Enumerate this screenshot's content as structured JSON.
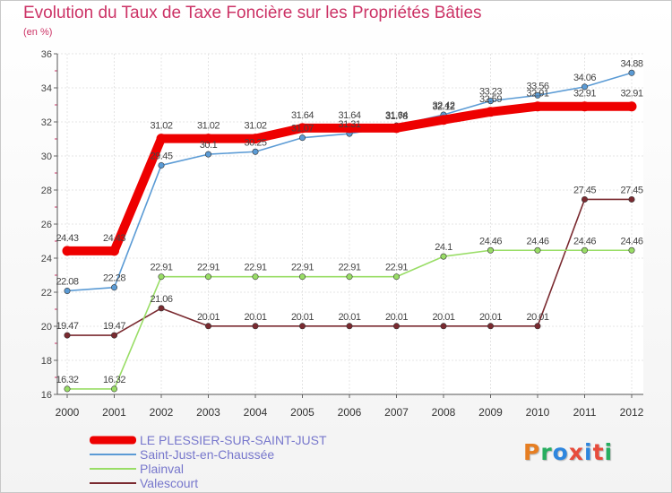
{
  "title": "Evolution du Taux de Taxe Foncière sur les Propriétés Bâties",
  "subtitle": "(en %)",
  "logo": {
    "text": "Proxiti",
    "letter_colors": [
      "#e67e22",
      "#27ae60",
      "#2e86de",
      "#e74c3c",
      "#2e86de",
      "#e74c3c",
      "#27ae60"
    ]
  },
  "chart_data": {
    "type": "line",
    "x": [
      "2000",
      "2001",
      "2002",
      "2003",
      "2004",
      "2005",
      "2006",
      "2007",
      "2008",
      "2009",
      "2010",
      "2011",
      "2012"
    ],
    "ylim": [
      16,
      36
    ],
    "yticks": [
      "16",
      "18",
      "20",
      "22",
      "24",
      "26",
      "28",
      "30",
      "32",
      "34",
      "36"
    ],
    "grid": true,
    "series": [
      {
        "name": "LE PLESSIER-SUR-SAINT-JUST",
        "color": "#ee0000",
        "values": [
          24.43,
          24.43,
          31.02,
          31.02,
          31.02,
          31.64,
          31.64,
          31.64,
          32.12,
          32.59,
          32.91,
          32.91,
          32.91
        ],
        "labels": [
          "24.43",
          "24.43",
          "31.02",
          "31.02",
          "31.02",
          "31.64",
          "31.64",
          "31.64",
          "32.12",
          "32.59",
          "32.91",
          "32.91",
          "32.91"
        ]
      },
      {
        "name": "Saint-Just-en-Chaussée",
        "color": "#5b9bd5",
        "values": [
          22.08,
          22.28,
          29.45,
          30.1,
          30.25,
          31.07,
          31.31,
          31.78,
          32.42,
          33.23,
          33.56,
          34.06,
          34.88
        ],
        "labels": [
          "22.08",
          "22.28",
          "29.45",
          "30.1",
          "30.25",
          "31.07",
          "31.31",
          "31.78",
          "32.42",
          "33.23",
          "33.56",
          "34.06",
          "34.88"
        ]
      },
      {
        "name": "Plainval",
        "color": "#99dd66",
        "values": [
          16.32,
          16.32,
          22.91,
          22.91,
          22.91,
          22.91,
          22.91,
          22.91,
          24.1,
          24.46,
          24.46,
          24.46,
          24.46
        ],
        "labels": [
          "16.32",
          "16.32",
          "22.91",
          "22.91",
          "22.91",
          "22.91",
          "22.91",
          "22.91",
          "24.1",
          "24.46",
          "24.46",
          "24.46",
          "24.46"
        ]
      },
      {
        "name": "Valescourt",
        "color": "#7a2a30",
        "values": [
          19.47,
          19.47,
          21.06,
          20.01,
          20.01,
          20.01,
          20.01,
          20.01,
          20.01,
          20.01,
          20.01,
          27.45,
          27.45
        ],
        "labels": [
          "19.47",
          "19.47",
          "21.06",
          "20.01",
          "20.01",
          "20.01",
          "20.01",
          "20.01",
          "20.01",
          "20.01",
          "20.01",
          "27.45",
          "27.45"
        ]
      }
    ]
  }
}
